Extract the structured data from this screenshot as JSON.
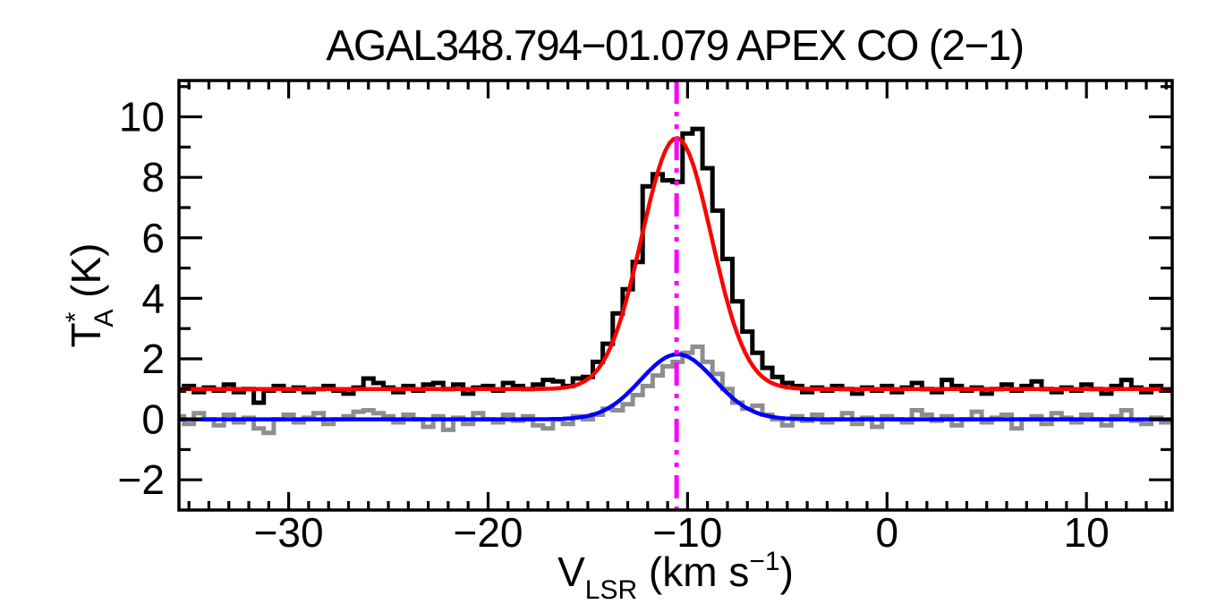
{
  "title": "AGAL348.794−01.079  APEX CO (2−1)",
  "colors": {
    "background": "#FFFFFF",
    "frame": "#000000",
    "observed_spectrum": "#000000",
    "offset_spectrum": "#8E8E8E",
    "fit_observed": "#FF0000",
    "fit_offset": "#0000FF",
    "vlsr_marker": "#FF00FF"
  },
  "axes": {
    "xlim": [
      -35.5,
      14.3
    ],
    "ylim": [
      -3.0,
      11.2
    ],
    "xticks_major": [
      -30,
      -20,
      -10,
      0,
      10
    ],
    "xtick_labels": [
      "−30",
      "−20",
      "−10",
      "0",
      "10"
    ],
    "xminor_step": 1,
    "yticks_major": [
      -2,
      0,
      2,
      4,
      6,
      8,
      10
    ],
    "ytick_labels": [
      "−2",
      "0",
      "2",
      "4",
      "6",
      "8",
      "10"
    ],
    "yminor_step": 1,
    "xlabel_parts": [
      {
        "text": "V",
        "kind": "normal"
      },
      {
        "text": "LSR",
        "kind": "sub"
      },
      {
        "text": " (km s",
        "kind": "normal"
      },
      {
        "text": "−1",
        "kind": "sup"
      },
      {
        "text": ")",
        "kind": "normal"
      }
    ],
    "ylabel_parts": [
      {
        "text": "T",
        "kind": "normal"
      },
      {
        "text": "*",
        "kind": "sup"
      },
      {
        "text": "A",
        "kind": "sub-under"
      },
      {
        "text": " (K)",
        "kind": "normal"
      }
    ]
  },
  "chart_data": {
    "type": "line",
    "title": "AGAL348.794−01.079  APEX CO (2−1)",
    "xlabel": "V_LSR (km s^-1)",
    "ylabel": "T_A^* (K)",
    "xlim": [
      -35.5,
      14.3
    ],
    "ylim": [
      -3.0,
      11.2
    ],
    "grid": false,
    "legend": false,
    "x_start": -35.5,
    "x_step": 0.5,
    "x_units": "km/s",
    "y_units": "K",
    "series": [
      {
        "name": "observed-spectrum",
        "style": "histogram",
        "color": "#000000",
        "baseline_level": 1.0,
        "values": [
          0.95,
          1.1,
          0.9,
          1.05,
          0.95,
          1.15,
          0.9,
          1.0,
          0.55,
          0.95,
          1.1,
          0.95,
          1.05,
          0.9,
          1.0,
          1.1,
          0.95,
          0.85,
          1.05,
          1.35,
          1.2,
          1.05,
          0.9,
          1.1,
          0.95,
          1.15,
          1.2,
          1.0,
          1.15,
          0.85,
          1.05,
          1.1,
          0.95,
          1.2,
          1.1,
          1.0,
          1.15,
          1.3,
          1.25,
          1.1,
          1.35,
          1.4,
          1.9,
          2.5,
          3.5,
          4.3,
          5.2,
          7.7,
          8.1,
          7.9,
          7.85,
          9.45,
          9.6,
          8.3,
          6.9,
          5.3,
          3.9,
          2.9,
          2.2,
          1.7,
          1.4,
          1.2,
          1.1,
          0.9,
          1.05,
          0.95,
          1.1,
          1.0,
          0.85,
          1.05,
          0.95,
          1.1,
          0.9,
          1.05,
          1.2,
          1.0,
          0.9,
          1.3,
          1.1,
          0.95,
          1.05,
          0.85,
          1.0,
          1.15,
          0.95,
          1.1,
          1.25,
          1.0,
          0.9,
          1.05,
          0.95,
          1.15,
          1.0,
          0.85,
          1.1,
          1.3,
          1.05,
          0.9,
          1.1,
          0.95
        ]
      },
      {
        "name": "offset-spectrum",
        "style": "histogram",
        "color": "#8E8E8E",
        "baseline_level": 0.0,
        "values": [
          0.1,
          -0.15,
          0.2,
          0.0,
          -0.2,
          0.15,
          -0.1,
          0.05,
          -0.3,
          -0.45,
          0.0,
          0.15,
          -0.1,
          0.05,
          0.2,
          -0.15,
          0.0,
          0.1,
          0.25,
          0.3,
          0.2,
          0.1,
          -0.1,
          0.15,
          0.0,
          -0.25,
          0.1,
          -0.35,
          0.05,
          -0.15,
          0.2,
          0.0,
          -0.1,
          0.15,
          -0.05,
          0.1,
          -0.2,
          -0.3,
          0.0,
          -0.15,
          0.1,
          0.0,
          0.15,
          0.35,
          0.3,
          0.5,
          0.8,
          1.1,
          1.45,
          1.75,
          1.9,
          2.2,
          2.4,
          1.9,
          1.5,
          1.0,
          0.55,
          0.35,
          0.45,
          0.15,
          0.0,
          -0.2,
          0.1,
          -0.05,
          0.15,
          -0.1,
          0.0,
          0.2,
          -0.15,
          0.05,
          -0.25,
          0.1,
          0.0,
          -0.1,
          0.3,
          0.15,
          -0.05,
          0.1,
          -0.2,
          0.0,
          0.25,
          -0.1,
          0.05,
          0.15,
          -0.3,
          0.0,
          0.1,
          -0.15,
          0.2,
          0.05,
          -0.1,
          0.15,
          0.0,
          -0.2,
          0.1,
          0.3,
          -0.05,
          -0.15,
          0.05,
          -0.1
        ]
      },
      {
        "name": "gaussian-fit-observed",
        "style": "gaussian",
        "color": "#FF0000",
        "baseline": 1.0,
        "amplitude": 8.3,
        "center": -10.55,
        "sigma": 1.75,
        "peak": 9.3
      },
      {
        "name": "gaussian-fit-offset",
        "style": "gaussian",
        "color": "#0000FF",
        "baseline": 0.0,
        "amplitude": 2.15,
        "center": -10.5,
        "sigma": 1.85,
        "peak": 2.15
      }
    ],
    "vline": {
      "x": -10.55,
      "color": "#FF00FF",
      "style": "dash-dot-dot",
      "label": "systemic-velocity-marker"
    }
  }
}
